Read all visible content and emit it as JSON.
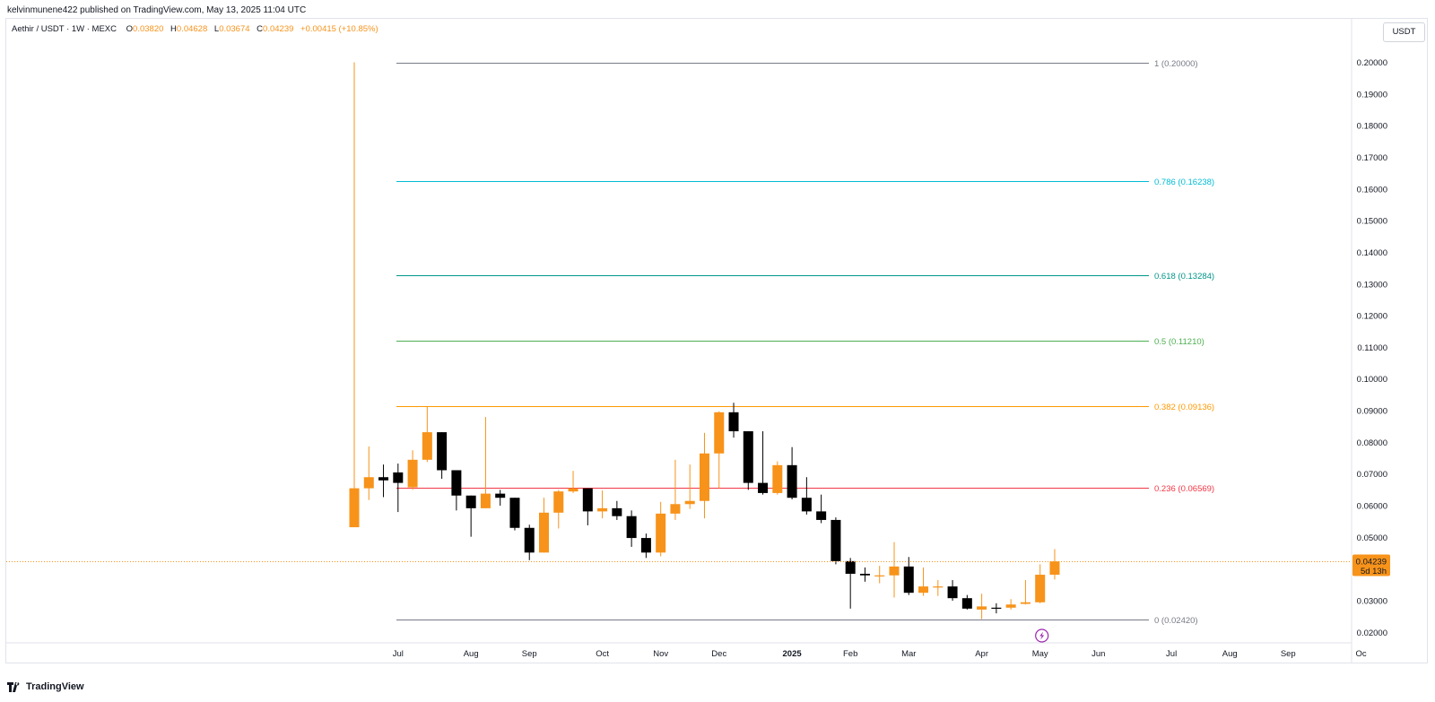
{
  "publisher": "kelvinmunene422 published on TradingView.com, May 13, 2025 11:04 UTC",
  "legend": {
    "symbol": "Aethir / USDT · 1W · MEXC",
    "o_label": "O",
    "o": "0.03820",
    "h_label": "H",
    "h": "0.04628",
    "l_label": "L",
    "l": "0.03674",
    "c_label": "C",
    "c": "0.04239",
    "change": "+0.00415 (+10.85%)"
  },
  "currency_button": "USDT",
  "footer_brand": "TradingView",
  "colors": {
    "up": "#f7931a",
    "down": "#000000",
    "grid": "#e0e3eb",
    "fib_1": "#787b86",
    "fib_786": "#00bcd4",
    "fib_618": "#009688",
    "fib_5": "#4caf50",
    "fib_382": "#ff9800",
    "fib_236": "#f23645",
    "fib_0": "#787b86",
    "price_tag": "#f7931a"
  },
  "chart_data": {
    "type": "candlestick",
    "title": "",
    "xlabel": "",
    "ylabel": "",
    "ylim": [
      0.015,
      0.2065
    ],
    "y_ticks": [
      "0.20000",
      "0.19000",
      "0.18000",
      "0.17000",
      "0.16000",
      "0.15000",
      "0.14000",
      "0.13000",
      "0.12000",
      "0.11000",
      "0.10000",
      "0.09000",
      "0.08000",
      "0.07000",
      "0.06000",
      "0.05000",
      "0.03000",
      "0.02000"
    ],
    "x_ticks": [
      "Jul",
      "Aug",
      "Sep",
      "Oct",
      "Nov",
      "Dec",
      "2025",
      "Feb",
      "Mar",
      "Apr",
      "May",
      "Jun",
      "Jul",
      "Aug",
      "Sep",
      "Oc"
    ],
    "x_tick_week_index": [
      3,
      8,
      12,
      17,
      21,
      25,
      30,
      34,
      38,
      43,
      47,
      51,
      56,
      60,
      64,
      69
    ],
    "last_price": "0.04239",
    "countdown": "5d 13h",
    "fib_levels": [
      {
        "label": "1 (0.20000)",
        "value": 0.2,
        "color_key": "fib_1"
      },
      {
        "label": "0.786 (0.16238)",
        "value": 0.16238,
        "color_key": "fib_786"
      },
      {
        "label": "0.618 (0.13284)",
        "value": 0.13284,
        "color_key": "fib_618"
      },
      {
        "label": "0.5 (0.11210)",
        "value": 0.1121,
        "color_key": "fib_5"
      },
      {
        "label": "0.382 (0.09136)",
        "value": 0.09136,
        "color_key": "fib_382"
      },
      {
        "label": "0.236 (0.06569)",
        "value": 0.06569,
        "color_key": "fib_236"
      },
      {
        "label": "0 (0.02420)",
        "value": 0.0242,
        "color_key": "fib_0"
      }
    ],
    "candles": [
      {
        "o": 0.0532,
        "h": 0.2,
        "l": 0.0532,
        "c": 0.0655
      },
      {
        "o": 0.0655,
        "h": 0.0787,
        "l": 0.0618,
        "c": 0.069
      },
      {
        "o": 0.069,
        "h": 0.073,
        "l": 0.0627,
        "c": 0.068
      },
      {
        "o": 0.0705,
        "h": 0.0733,
        "l": 0.058,
        "c": 0.0672
      },
      {
        "o": 0.0658,
        "h": 0.0775,
        "l": 0.065,
        "c": 0.0745
      },
      {
        "o": 0.0745,
        "h": 0.0913,
        "l": 0.0738,
        "c": 0.0832
      },
      {
        "o": 0.0832,
        "h": 0.0832,
        "l": 0.0685,
        "c": 0.0712
      },
      {
        "o": 0.0712,
        "h": 0.0712,
        "l": 0.0585,
        "c": 0.0632
      },
      {
        "o": 0.0632,
        "h": 0.0632,
        "l": 0.0502,
        "c": 0.0592
      },
      {
        "o": 0.0592,
        "h": 0.088,
        "l": 0.0592,
        "c": 0.0638
      },
      {
        "o": 0.0638,
        "h": 0.065,
        "l": 0.06,
        "c": 0.0625
      },
      {
        "o": 0.0625,
        "h": 0.0625,
        "l": 0.0522,
        "c": 0.053
      },
      {
        "o": 0.053,
        "h": 0.054,
        "l": 0.0428,
        "c": 0.0452
      },
      {
        "o": 0.0452,
        "h": 0.0625,
        "l": 0.0452,
        "c": 0.0578
      },
      {
        "o": 0.0578,
        "h": 0.065,
        "l": 0.0528,
        "c": 0.0645
      },
      {
        "o": 0.0645,
        "h": 0.071,
        "l": 0.064,
        "c": 0.0655
      },
      {
        "o": 0.0655,
        "h": 0.0655,
        "l": 0.0538,
        "c": 0.0582
      },
      {
        "o": 0.0582,
        "h": 0.0648,
        "l": 0.056,
        "c": 0.0592
      },
      {
        "o": 0.0592,
        "h": 0.0615,
        "l": 0.0555,
        "c": 0.0567
      },
      {
        "o": 0.0567,
        "h": 0.0585,
        "l": 0.047,
        "c": 0.0498
      },
      {
        "o": 0.0498,
        "h": 0.0512,
        "l": 0.0435,
        "c": 0.0452
      },
      {
        "o": 0.0452,
        "h": 0.0612,
        "l": 0.044,
        "c": 0.0575
      },
      {
        "o": 0.0575,
        "h": 0.0745,
        "l": 0.0555,
        "c": 0.0605
      },
      {
        "o": 0.0605,
        "h": 0.073,
        "l": 0.059,
        "c": 0.0615
      },
      {
        "o": 0.0615,
        "h": 0.083,
        "l": 0.056,
        "c": 0.0765
      },
      {
        "o": 0.0765,
        "h": 0.0898,
        "l": 0.0655,
        "c": 0.0895
      },
      {
        "o": 0.0895,
        "h": 0.0925,
        "l": 0.0815,
        "c": 0.0835
      },
      {
        "o": 0.0835,
        "h": 0.0835,
        "l": 0.065,
        "c": 0.0672
      },
      {
        "o": 0.0672,
        "h": 0.0835,
        "l": 0.0635,
        "c": 0.064
      },
      {
        "o": 0.064,
        "h": 0.074,
        "l": 0.0635,
        "c": 0.0728
      },
      {
        "o": 0.0728,
        "h": 0.0785,
        "l": 0.062,
        "c": 0.0625
      },
      {
        "o": 0.0625,
        "h": 0.069,
        "l": 0.0572,
        "c": 0.0582
      },
      {
        "o": 0.0582,
        "h": 0.0635,
        "l": 0.0545,
        "c": 0.0555
      },
      {
        "o": 0.0555,
        "h": 0.0563,
        "l": 0.0415,
        "c": 0.0425
      },
      {
        "o": 0.0425,
        "h": 0.0435,
        "l": 0.0275,
        "c": 0.0385
      },
      {
        "o": 0.0385,
        "h": 0.0405,
        "l": 0.036,
        "c": 0.038
      },
      {
        "o": 0.038,
        "h": 0.041,
        "l": 0.0355,
        "c": 0.038
      },
      {
        "o": 0.038,
        "h": 0.0485,
        "l": 0.031,
        "c": 0.0408
      },
      {
        "o": 0.0408,
        "h": 0.0438,
        "l": 0.0318,
        "c": 0.0325
      },
      {
        "o": 0.0325,
        "h": 0.0405,
        "l": 0.0315,
        "c": 0.0345
      },
      {
        "o": 0.0345,
        "h": 0.0365,
        "l": 0.0315,
        "c": 0.0345
      },
      {
        "o": 0.0345,
        "h": 0.0365,
        "l": 0.03,
        "c": 0.0308
      },
      {
        "o": 0.0308,
        "h": 0.0318,
        "l": 0.0272,
        "c": 0.0275
      },
      {
        "o": 0.0272,
        "h": 0.0322,
        "l": 0.0242,
        "c": 0.0282
      },
      {
        "o": 0.0278,
        "h": 0.0292,
        "l": 0.026,
        "c": 0.0275
      },
      {
        "o": 0.0278,
        "h": 0.0305,
        "l": 0.0272,
        "c": 0.0288
      },
      {
        "o": 0.029,
        "h": 0.0365,
        "l": 0.0288,
        "c": 0.0295
      },
      {
        "o": 0.0295,
        "h": 0.0415,
        "l": 0.0292,
        "c": 0.0382
      },
      {
        "o": 0.0382,
        "h": 0.0463,
        "l": 0.0367,
        "c": 0.0424
      }
    ]
  }
}
